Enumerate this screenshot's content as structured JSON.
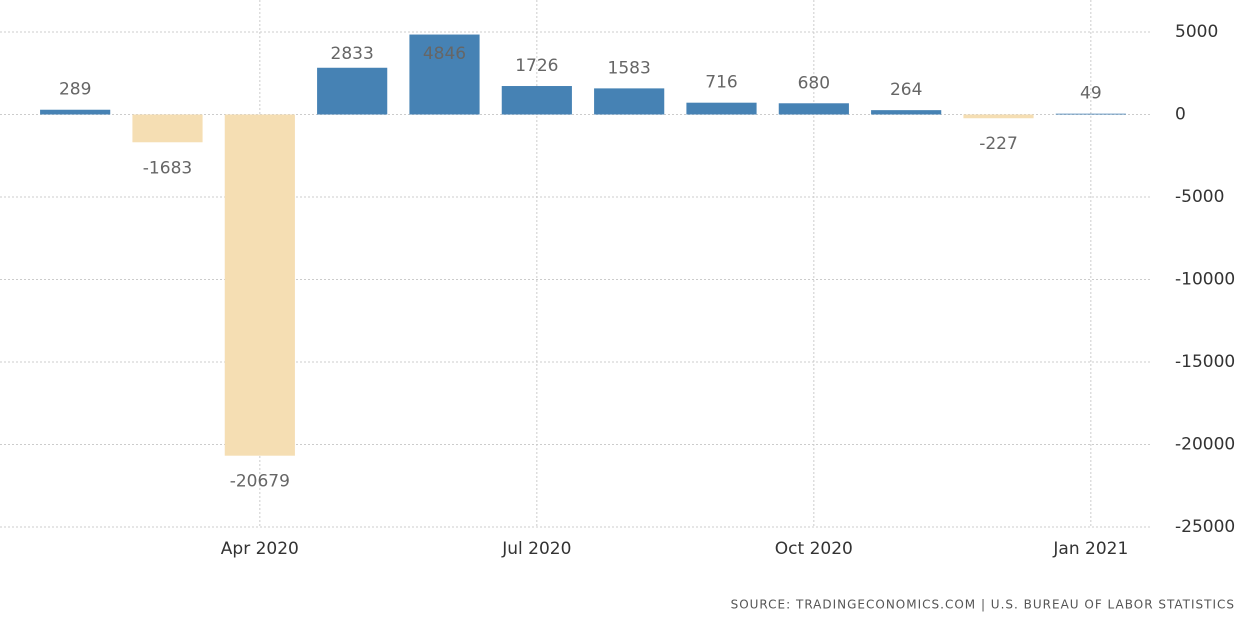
{
  "chart_data": {
    "type": "bar",
    "source": "SOURCE: TRADINGECONOMICS.COM | U.S. BUREAU OF LABOR STATISTICS",
    "categories": [
      null,
      null,
      "Apr 2020",
      null,
      null,
      "Jul 2020",
      null,
      null,
      "Oct 2020",
      null,
      null,
      "Jan 2021"
    ],
    "values": [
      289,
      -1683,
      -20679,
      2833,
      4846,
      1726,
      1583,
      716,
      680,
      264,
      -227,
      49
    ],
    "positive_color": "#4682b4",
    "negative_color": "#f5deb3",
    "ylim": [
      -25000,
      5000
    ],
    "yticks": [
      -25000,
      -20000,
      -15000,
      -10000,
      -5000,
      0,
      5000
    ],
    "grid": true
  }
}
